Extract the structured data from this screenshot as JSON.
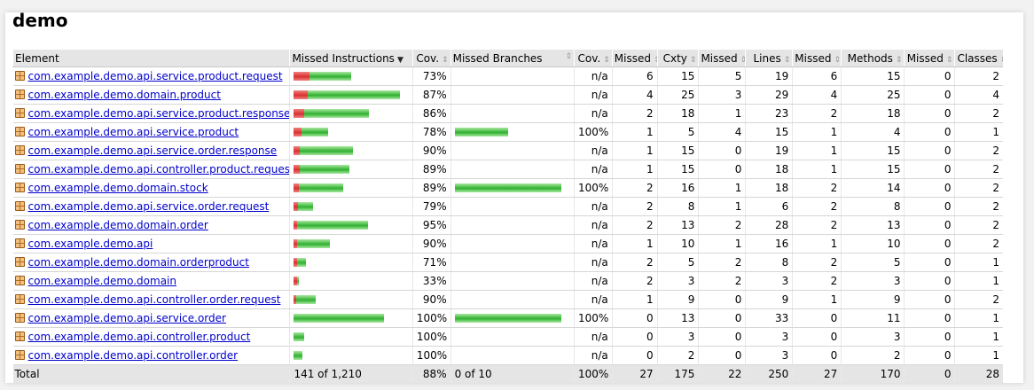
{
  "title": "demo",
  "headers": {
    "element": "Element",
    "missed_instructions": "Missed Instructions",
    "cov1": "Cov.",
    "missed_branches": "Missed Branches",
    "cov2": "Cov.",
    "missed_cxty": "Missed",
    "cxty": "Cxty",
    "missed_lines": "Missed",
    "lines": "Lines",
    "missed_methods": "Missed",
    "methods": "Methods",
    "missed_classes": "Missed",
    "classes": "Classes"
  },
  "colors": {
    "missed_bar": "#d93030",
    "covered_bar": "#30b030",
    "link": "#0000cc"
  },
  "icons": {
    "package": "package-icon",
    "sort": "sort-icon",
    "sort_desc": "sort-desc-icon"
  },
  "rows": [
    {
      "name": "com.example.demo.api.service.product.request",
      "instr_missed_frac": 0.27,
      "instr_total": 122,
      "cov": "73%",
      "br_total": 0,
      "br_cov": "n/a",
      "mcx": "6",
      "cx": "15",
      "ml": "5",
      "l": "19",
      "mm": "6",
      "m": "15",
      "mc": "0",
      "c": "2"
    },
    {
      "name": "com.example.demo.domain.product",
      "instr_missed_frac": 0.13,
      "instr_total": 226,
      "cov": "87%",
      "br_total": 0,
      "br_cov": "n/a",
      "mcx": "4",
      "cx": "25",
      "ml": "3",
      "l": "29",
      "mm": "4",
      "m": "25",
      "mc": "0",
      "c": "4"
    },
    {
      "name": "com.example.demo.api.service.product.response",
      "instr_missed_frac": 0.14,
      "instr_total": 160,
      "cov": "86%",
      "br_total": 0,
      "br_cov": "n/a",
      "mcx": "2",
      "cx": "18",
      "ml": "1",
      "l": "23",
      "mm": "2",
      "m": "18",
      "mc": "0",
      "c": "2"
    },
    {
      "name": "com.example.demo.api.service.product",
      "instr_missed_frac": 0.22,
      "instr_total": 74,
      "cov": "78%",
      "br_total": 114,
      "br_cov": "100%",
      "mcx": "1",
      "cx": "5",
      "ml": "4",
      "l": "15",
      "mm": "1",
      "m": "4",
      "mc": "0",
      "c": "1"
    },
    {
      "name": "com.example.demo.api.service.order.response",
      "instr_missed_frac": 0.1,
      "instr_total": 126,
      "cov": "90%",
      "br_total": 0,
      "br_cov": "n/a",
      "mcx": "1",
      "cx": "15",
      "ml": "0",
      "l": "19",
      "mm": "1",
      "m": "15",
      "mc": "0",
      "c": "2"
    },
    {
      "name": "com.example.demo.api.controller.product.request",
      "instr_missed_frac": 0.11,
      "instr_total": 118,
      "cov": "89%",
      "br_total": 0,
      "br_cov": "n/a",
      "mcx": "1",
      "cx": "15",
      "ml": "0",
      "l": "18",
      "mm": "1",
      "m": "15",
      "mc": "0",
      "c": "2"
    },
    {
      "name": "com.example.demo.domain.stock",
      "instr_missed_frac": 0.11,
      "instr_total": 106,
      "cov": "89%",
      "br_total": 228,
      "br_cov": "100%",
      "mcx": "2",
      "cx": "16",
      "ml": "1",
      "l": "18",
      "mm": "2",
      "m": "14",
      "mc": "0",
      "c": "2"
    },
    {
      "name": "com.example.demo.api.service.order.request",
      "instr_missed_frac": 0.21,
      "instr_total": 42,
      "cov": "79%",
      "br_total": 0,
      "br_cov": "n/a",
      "mcx": "2",
      "cx": "8",
      "ml": "1",
      "l": "6",
      "mm": "2",
      "m": "8",
      "mc": "0",
      "c": "2"
    },
    {
      "name": "com.example.demo.domain.order",
      "instr_missed_frac": 0.05,
      "instr_total": 158,
      "cov": "95%",
      "br_total": 0,
      "br_cov": "n/a",
      "mcx": "2",
      "cx": "13",
      "ml": "2",
      "l": "28",
      "mm": "2",
      "m": "13",
      "mc": "0",
      "c": "2"
    },
    {
      "name": "com.example.demo.api",
      "instr_missed_frac": 0.1,
      "instr_total": 78,
      "cov": "90%",
      "br_total": 0,
      "br_cov": "n/a",
      "mcx": "1",
      "cx": "10",
      "ml": "1",
      "l": "16",
      "mm": "1",
      "m": "10",
      "mc": "0",
      "c": "2"
    },
    {
      "name": "com.example.demo.domain.orderproduct",
      "instr_missed_frac": 0.29,
      "instr_total": 26,
      "cov": "71%",
      "br_total": 0,
      "br_cov": "n/a",
      "mcx": "2",
      "cx": "5",
      "ml": "2",
      "l": "8",
      "mm": "2",
      "m": "5",
      "mc": "0",
      "c": "1"
    },
    {
      "name": "com.example.demo.domain",
      "instr_missed_frac": 0.67,
      "instr_total": 12,
      "cov": "33%",
      "br_total": 0,
      "br_cov": "n/a",
      "mcx": "2",
      "cx": "3",
      "ml": "2",
      "l": "3",
      "mm": "2",
      "m": "3",
      "mc": "0",
      "c": "1"
    },
    {
      "name": "com.example.demo.api.controller.order.request",
      "instr_missed_frac": 0.1,
      "instr_total": 48,
      "cov": "90%",
      "br_total": 0,
      "br_cov": "n/a",
      "mcx": "1",
      "cx": "9",
      "ml": "0",
      "l": "9",
      "mm": "1",
      "m": "9",
      "mc": "0",
      "c": "2"
    },
    {
      "name": "com.example.demo.api.service.order",
      "instr_missed_frac": 0.0,
      "instr_total": 192,
      "cov": "100%",
      "br_total": 228,
      "br_cov": "100%",
      "mcx": "0",
      "cx": "13",
      "ml": "0",
      "l": "33",
      "mm": "0",
      "m": "11",
      "mc": "0",
      "c": "1"
    },
    {
      "name": "com.example.demo.api.controller.product",
      "instr_missed_frac": 0.0,
      "instr_total": 22,
      "cov": "100%",
      "br_total": 0,
      "br_cov": "n/a",
      "mcx": "0",
      "cx": "3",
      "ml": "0",
      "l": "3",
      "mm": "0",
      "m": "3",
      "mc": "0",
      "c": "1"
    },
    {
      "name": "com.example.demo.api.controller.order",
      "instr_missed_frac": 0.0,
      "instr_total": 18,
      "cov": "100%",
      "br_total": 0,
      "br_cov": "n/a",
      "mcx": "0",
      "cx": "2",
      "ml": "0",
      "l": "3",
      "mm": "0",
      "m": "2",
      "mc": "0",
      "c": "1"
    }
  ],
  "total": {
    "label": "Total",
    "instr": "141 of 1,210",
    "cov": "88%",
    "br": "0 of 10",
    "br_cov": "100%",
    "mcx": "27",
    "cx": "175",
    "ml": "22",
    "l": "250",
    "mm": "27",
    "m": "170",
    "mc": "0",
    "c": "28"
  }
}
